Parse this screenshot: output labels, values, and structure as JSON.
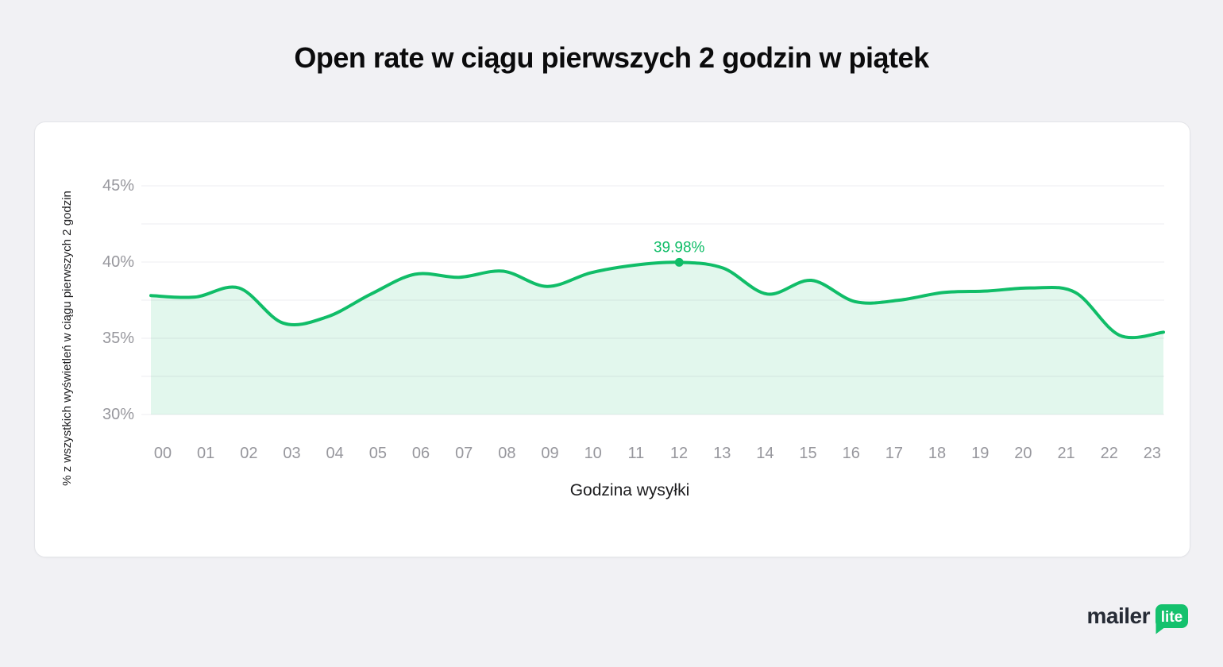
{
  "page": {
    "title": "Open rate w ciągu pierwszych 2 godzin w piątek"
  },
  "logo": {
    "first": "mailer",
    "second": "lite"
  },
  "chart_data": {
    "type": "area",
    "title": "Open rate w ciągu pierwszych 2 godzin w piątek",
    "xlabel": "Godzina wysyłki",
    "ylabel": "% z wszystkich wyświetleń w ciągu pierwszych 2 godzin",
    "x": [
      "00",
      "01",
      "02",
      "03",
      "04",
      "05",
      "06",
      "07",
      "08",
      "09",
      "10",
      "11",
      "12",
      "13",
      "14",
      "15",
      "16",
      "17",
      "18",
      "19",
      "20",
      "21",
      "22",
      "23"
    ],
    "series": [
      {
        "name": "Open rate",
        "values": [
          37.8,
          37.7,
          38.3,
          36.0,
          36.4,
          37.9,
          39.2,
          39.0,
          39.4,
          38.4,
          39.3,
          39.8,
          39.98,
          39.6,
          37.9,
          38.8,
          37.4,
          37.5,
          38.0,
          38.1,
          38.3,
          38.0,
          35.2,
          35.4
        ]
      }
    ],
    "ylim": [
      30,
      45
    ],
    "ytick_values": [
      45,
      40,
      35,
      30
    ],
    "ytick_labels": [
      "45%",
      "40%",
      "35%",
      "30%"
    ],
    "grid_values": [
      45,
      42.5,
      40,
      37.5,
      35,
      32.5,
      30
    ],
    "grid": true,
    "legend": false,
    "annotation": {
      "x_index": 12,
      "value": 39.98,
      "label": "39.98%"
    },
    "colors": {
      "line": "#10bd68",
      "fill": "rgba(16,189,104,0.12)",
      "grid": "#ececf0",
      "tick": "#97979d",
      "axis_title": "#1d1d1f",
      "annotation": "#10bd68",
      "page_bg": "#f1f1f4",
      "card_bg": "#ffffff",
      "card_border": "#e3e4e8",
      "logo_green": "#14c16d"
    }
  }
}
